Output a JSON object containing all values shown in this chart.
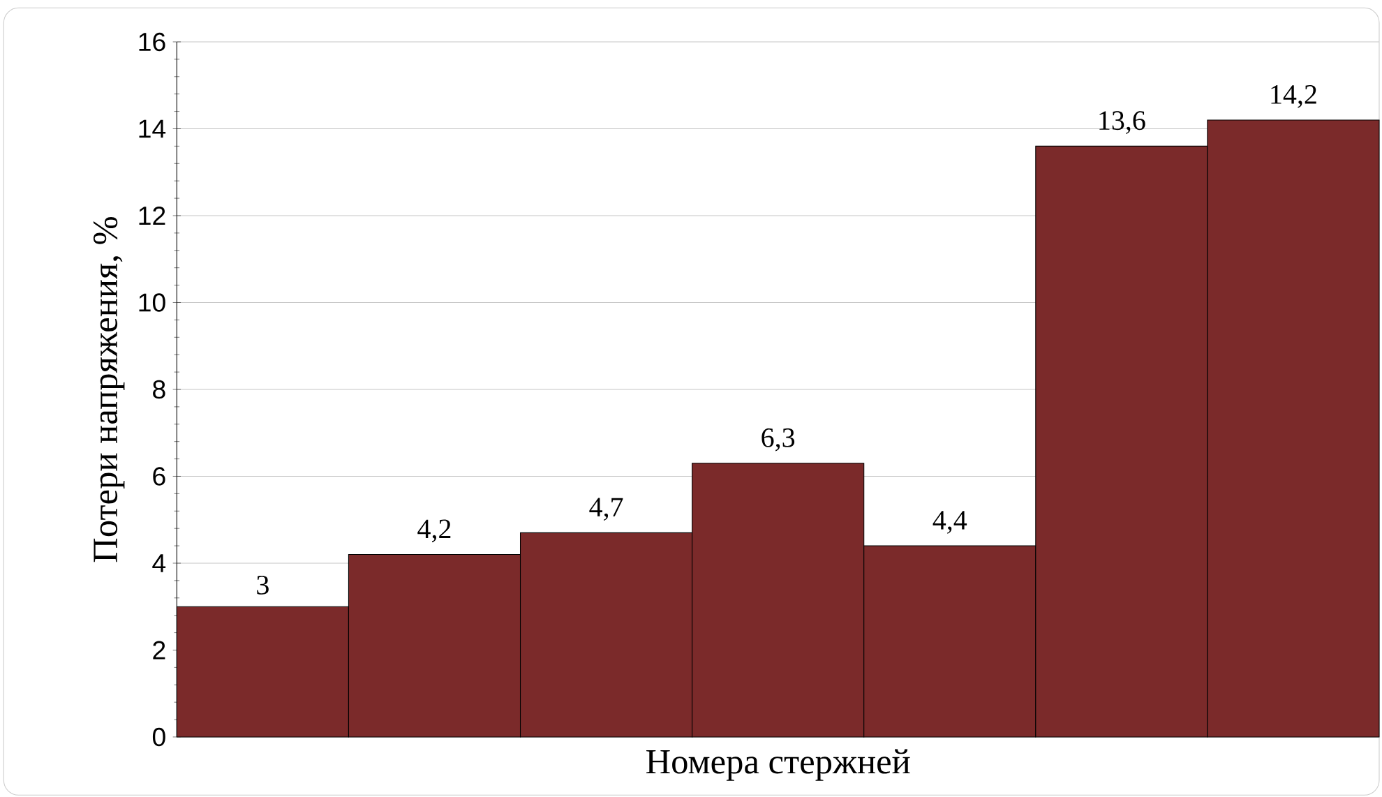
{
  "chart_data": {
    "type": "bar",
    "xlabel": "Номера стержней",
    "ylabel": "Потери  напряжения, %",
    "categories": [
      null,
      null,
      null,
      null,
      null,
      null,
      null
    ],
    "values": [
      3,
      4.2,
      4.7,
      6.3,
      4.4,
      13.6,
      14.2
    ],
    "value_labels": [
      "3",
      "4,2",
      "4,7",
      "6,3",
      "4,4",
      "13,6",
      "14,2"
    ],
    "color": "#7b2a2a",
    "ylim": [
      0,
      16
    ],
    "yticks": [
      0,
      2,
      4,
      6,
      8,
      10,
      12,
      14,
      16
    ],
    "grid": "y",
    "tick_labels": "y"
  }
}
